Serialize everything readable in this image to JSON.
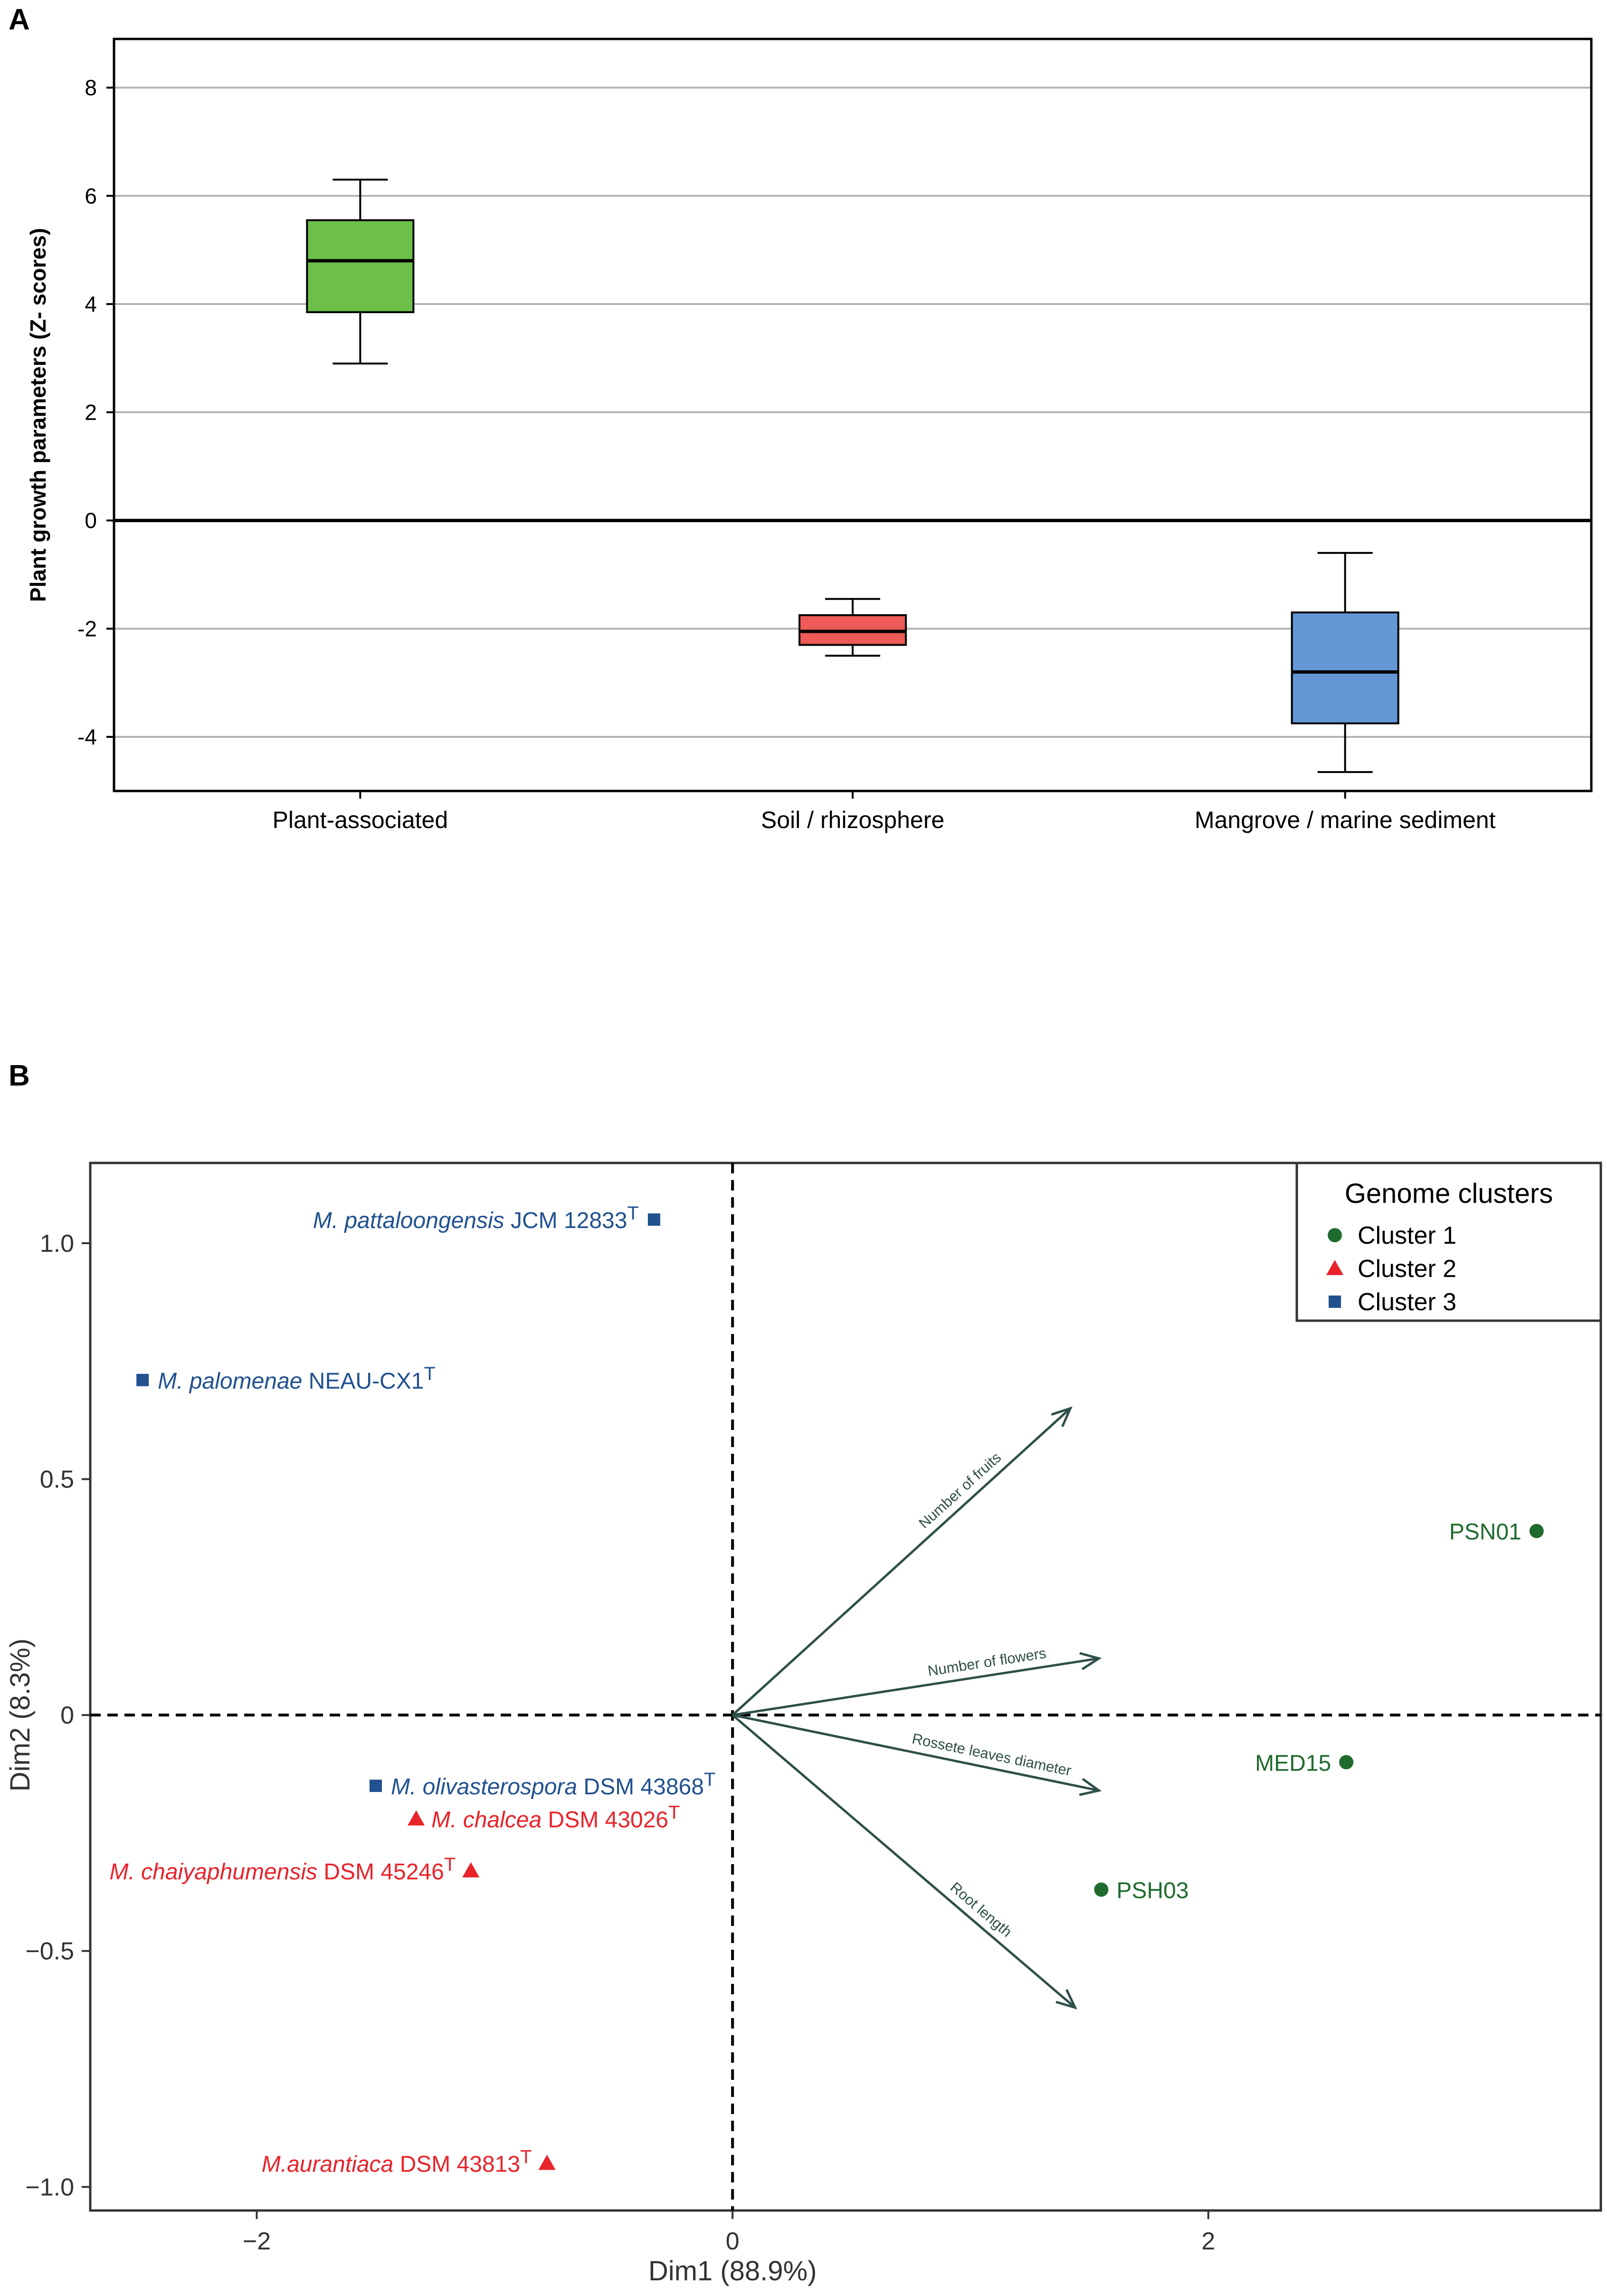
{
  "figure": {
    "panel_a_label": "A",
    "panel_b_label": "B"
  },
  "chart_data": [
    {
      "type": "box",
      "panel": "A",
      "title": "",
      "xlabel": "",
      "ylabel": "Plant growth parameters (Z- scores)",
      "ylim": [
        -5,
        8.9
      ],
      "yticks": [
        -4,
        -2,
        0,
        2,
        4,
        6,
        8
      ],
      "ytick_labels": [
        "-4",
        "-2",
        "0",
        "2",
        "4",
        "6",
        "8"
      ],
      "grid": true,
      "categories": [
        "Plant-associated",
        "Soil / rhizosphere",
        "Mangrove / marine sediment"
      ],
      "boxes": [
        {
          "name": "Plant-associated",
          "min": 2.9,
          "q1": 3.85,
          "median": 4.8,
          "q3": 5.55,
          "max": 6.3,
          "color": "#6cc04a"
        },
        {
          "name": "Soil / rhizosphere",
          "min": -2.5,
          "q1": -2.3,
          "median": -2.05,
          "q3": -1.75,
          "max": -1.45,
          "color": "#ee5a55"
        },
        {
          "name": "Mangrove / marine sediment",
          "min": -4.65,
          "q1": -3.75,
          "median": -2.8,
          "q3": -1.7,
          "max": -0.6,
          "color": "#6497d6"
        }
      ]
    },
    {
      "type": "scatter",
      "panel": "B",
      "title": "",
      "xlabel": "Dim1 (88.9%)",
      "ylabel": "Dim2 (8.3%)",
      "xlim": [
        -2.7,
        3.65
      ],
      "ylim": [
        -1.05,
        1.17
      ],
      "xticks": [
        -2,
        0,
        2
      ],
      "xtick_labels": [
        "−2",
        "0",
        "2"
      ],
      "yticks": [
        -1.0,
        -0.5,
        0,
        0.5,
        1.0
      ],
      "ytick_labels": [
        "−1.0",
        "−0.5",
        "0",
        "0.5",
        "1.0"
      ],
      "grid": false,
      "legend": {
        "title": "Genome clusters",
        "position": "top-right",
        "entries": [
          {
            "label": "Cluster 1",
            "marker": "circle",
            "color": "#1f6b2e"
          },
          {
            "label": "Cluster 2",
            "marker": "triangle",
            "color": "#e8232a"
          },
          {
            "label": "Cluster 3",
            "marker": "square",
            "color": "#21518f"
          }
        ]
      },
      "points": [
        {
          "italic": "M. pattaloongensis",
          "rest": " JCM 12833",
          "sup": "T",
          "cluster": "Cluster 3",
          "x": -0.33,
          "y": 1.05,
          "label_side": "left"
        },
        {
          "italic": "M. palomenae",
          "rest": " NEAU-CX1",
          "sup": "T",
          "cluster": "Cluster 3",
          "x": -2.48,
          "y": 0.71,
          "label_side": "right"
        },
        {
          "italic": "",
          "rest": "PSN01",
          "sup": "",
          "cluster": "Cluster 1",
          "x": 3.38,
          "y": 0.39,
          "label_side": "left"
        },
        {
          "italic": "",
          "rest": "MED15",
          "sup": "",
          "cluster": "Cluster 1",
          "x": 2.58,
          "y": -0.1,
          "label_side": "left"
        },
        {
          "italic": "",
          "rest": "PSH03",
          "sup": "",
          "cluster": "Cluster 1",
          "x": 1.55,
          "y": -0.37,
          "label_side": "right"
        },
        {
          "italic": "M. olivasterospora",
          "rest": " DSM 43868",
          "sup": "T",
          "cluster": "Cluster 3",
          "x": -1.5,
          "y": -0.15,
          "label_side": "right"
        },
        {
          "italic": "M. chalcea",
          "rest": " DSM 43026",
          "sup": "T",
          "cluster": "Cluster 2",
          "x": -1.33,
          "y": -0.22,
          "label_side": "right"
        },
        {
          "italic": "M. chaiyaphumensis",
          "rest": " DSM 45246",
          "sup": "T",
          "cluster": "Cluster 2",
          "x": -1.1,
          "y": -0.33,
          "label_side": "left"
        },
        {
          "italic": "M.aurantiaca",
          "rest": " DSM 43813",
          "sup": "T",
          "cluster": "Cluster 2",
          "x": -0.78,
          "y": -0.95,
          "label_side": "left"
        }
      ],
      "vectors": [
        {
          "label": "Number of fruits",
          "x": 1.42,
          "y": 0.65
        },
        {
          "label": "Number of flowers",
          "x": 1.54,
          "y": 0.12
        },
        {
          "label": "Rossete leaves diameter",
          "x": 1.54,
          "y": -0.16
        },
        {
          "label": "Root length",
          "x": 1.44,
          "y": -0.62
        }
      ]
    }
  ]
}
